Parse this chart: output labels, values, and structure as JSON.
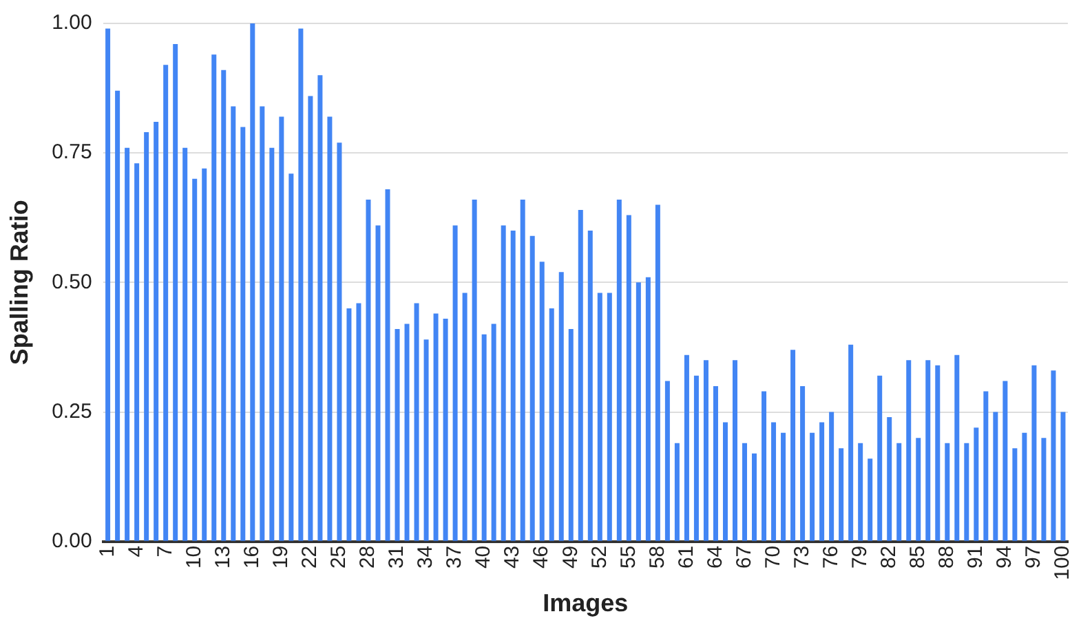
{
  "chart_data": {
    "type": "bar",
    "xlabel": "Images",
    "ylabel": "Spalling Ratio",
    "categories": [
      "1",
      null,
      null,
      "4",
      null,
      null,
      "7",
      null,
      null,
      "10",
      null,
      null,
      "13",
      null,
      null,
      "16",
      null,
      null,
      "19",
      null,
      null,
      "22",
      null,
      null,
      "25",
      null,
      null,
      "28",
      null,
      null,
      "31",
      null,
      null,
      "34",
      null,
      null,
      "37",
      null,
      null,
      "40",
      null,
      null,
      "43",
      null,
      null,
      "46",
      null,
      null,
      "49",
      null,
      null,
      "52",
      null,
      null,
      "55",
      null,
      null,
      "58",
      null,
      null,
      "61",
      null,
      null,
      "64",
      null,
      null,
      "67",
      null,
      null,
      "70",
      null,
      null,
      "73",
      null,
      null,
      "76",
      null,
      null,
      "79",
      null,
      null,
      "82",
      null,
      null,
      "85",
      null,
      null,
      "88",
      null,
      null,
      "91",
      null,
      null,
      "94",
      null,
      null,
      "97",
      null,
      null,
      "100"
    ],
    "values": [
      0.99,
      0.87,
      0.76,
      0.73,
      0.79,
      0.81,
      0.92,
      0.96,
      0.76,
      0.7,
      0.72,
      0.94,
      0.91,
      0.84,
      0.8,
      1.0,
      0.84,
      0.76,
      0.82,
      0.71,
      0.99,
      0.86,
      0.9,
      0.82,
      0.77,
      0.45,
      0.46,
      0.66,
      0.61,
      0.68,
      0.41,
      0.42,
      0.46,
      0.39,
      0.44,
      0.43,
      0.61,
      0.48,
      0.66,
      0.4,
      0.42,
      0.61,
      0.6,
      0.66,
      0.59,
      0.54,
      0.45,
      0.52,
      0.41,
      0.64,
      0.6,
      0.48,
      0.48,
      0.66,
      0.63,
      0.5,
      0.51,
      0.65,
      0.31,
      0.19,
      0.36,
      0.32,
      0.35,
      0.3,
      0.23,
      0.35,
      0.19,
      0.17,
      0.29,
      0.23,
      0.21,
      0.37,
      0.3,
      0.21,
      0.23,
      0.25,
      0.18,
      0.38,
      0.19,
      0.16,
      0.32,
      0.24,
      0.19,
      0.35,
      0.2,
      0.35,
      0.34,
      0.19,
      0.36,
      0.19,
      0.22,
      0.29,
      0.25,
      0.31,
      0.18,
      0.21,
      0.34,
      0.2,
      0.33,
      0.25
    ],
    "color": "#4285f4",
    "ylim": [
      0,
      1
    ],
    "yticks": [
      {
        "value": 0,
        "label": "0.00"
      },
      {
        "value": 0.25,
        "label": "0.25"
      },
      {
        "value": 0.5,
        "label": "0.50"
      },
      {
        "value": 0.75,
        "label": "0.75"
      },
      {
        "value": 1,
        "label": "1.00"
      }
    ],
    "grid": "y"
  }
}
